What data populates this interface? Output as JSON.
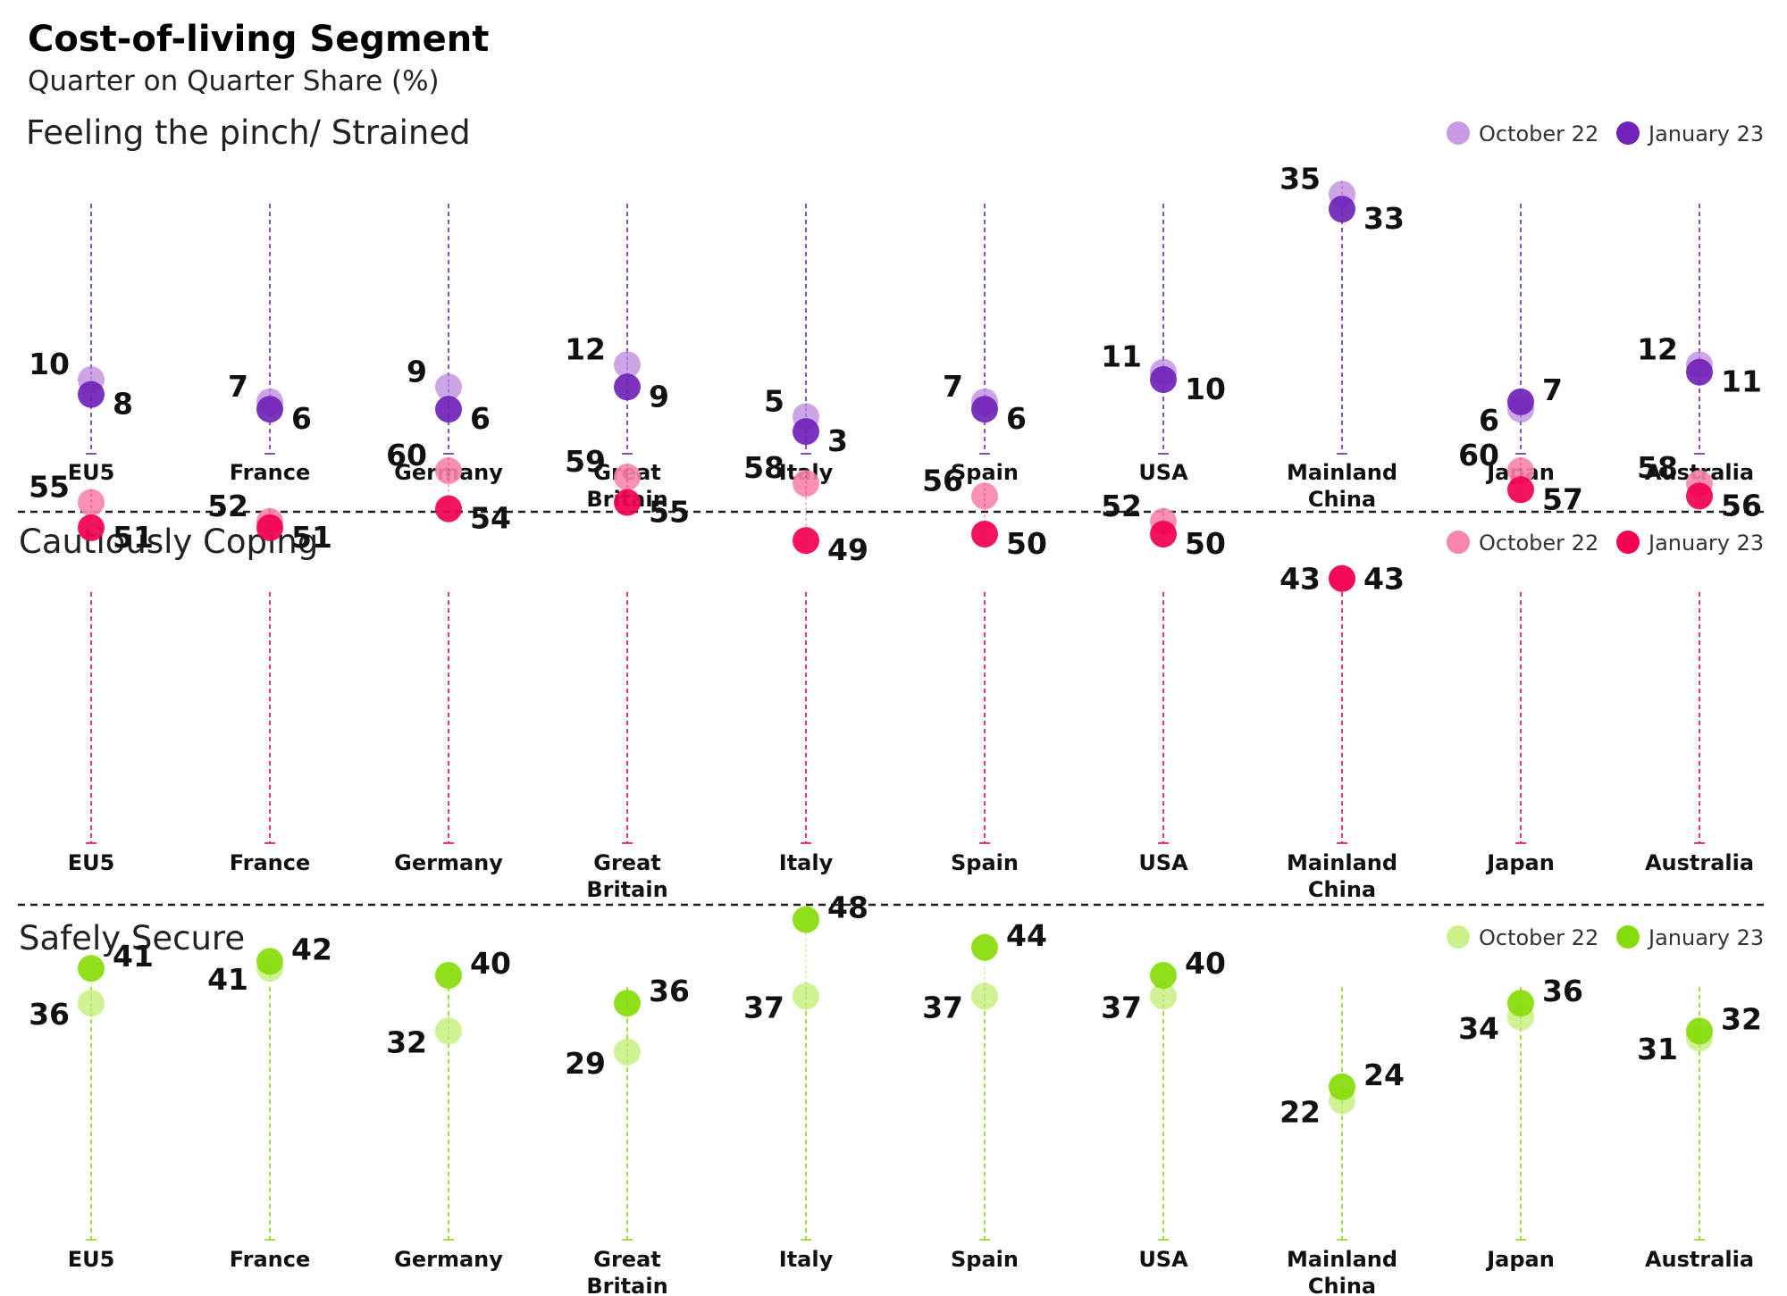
{
  "title": "Cost-of-living Segment",
  "subtitle": "Quarter on Quarter Share (%)",
  "legend": {
    "series1": "October 22",
    "series2": "January 23"
  },
  "chart_data": [
    {
      "type": "scatter",
      "title": "Feeling the pinch/ Strained",
      "categories": [
        "EU5",
        "France",
        "Germany",
        "Great Britain",
        "Italy",
        "Spain",
        "USA",
        "Mainland China",
        "Japan",
        "Australia"
      ],
      "series": [
        {
          "name": "October 22",
          "values": [
            10,
            7,
            9,
            12,
            5,
            7,
            11,
            35,
            6,
            12
          ]
        },
        {
          "name": "January 23",
          "values": [
            8,
            6,
            6,
            9,
            3,
            6,
            10,
            33,
            7,
            11
          ]
        }
      ],
      "colors": {
        "light": "#c79be3",
        "dark": "#7122b8"
      }
    },
    {
      "type": "scatter",
      "title": "Cautiously Coping",
      "categories": [
        "EU5",
        "France",
        "Germany",
        "Great Britain",
        "Italy",
        "Spain",
        "USA",
        "Mainland China",
        "Japan",
        "Australia"
      ],
      "series": [
        {
          "name": "October 22",
          "values": [
            55,
            52,
            60,
            59,
            58,
            56,
            52,
            43,
            60,
            58
          ]
        },
        {
          "name": "January 23",
          "values": [
            51,
            51,
            54,
            55,
            49,
            50,
            50,
            43,
            57,
            56
          ]
        }
      ],
      "colors": {
        "light": "#f785ad",
        "dark": "#f2004f"
      }
    },
    {
      "type": "scatter",
      "title": "Safely Secure",
      "categories": [
        "EU5",
        "France",
        "Germany",
        "Great Britain",
        "Italy",
        "Spain",
        "USA",
        "Mainland China",
        "Japan",
        "Australia"
      ],
      "series": [
        {
          "name": "October 22",
          "values": [
            36,
            41,
            32,
            29,
            37,
            37,
            37,
            22,
            34,
            31
          ]
        },
        {
          "name": "January 23",
          "values": [
            41,
            42,
            40,
            36,
            48,
            44,
            40,
            24,
            36,
            32
          ]
        }
      ],
      "colors": {
        "light": "#ccf08a",
        "dark": "#86dc0a"
      }
    }
  ]
}
